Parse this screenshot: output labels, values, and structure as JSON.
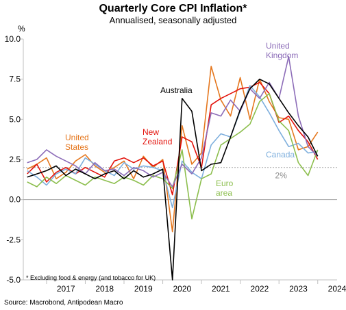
{
  "chart_data": {
    "type": "line",
    "title": "Quarterly Core CPI Inflation*",
    "subtitle": "Annualised, seasonally adjusted",
    "ylabel": "%",
    "ylim": [
      -5.0,
      10.0
    ],
    "yticks": [
      -5.0,
      -2.5,
      0.0,
      2.5,
      5.0,
      7.5,
      10.0
    ],
    "ytick_labels": [
      "-5.0",
      "-2.5",
      "0.0",
      "2.5",
      "5.0",
      "7.5",
      "10.0"
    ],
    "xlim": [
      2016.4,
      2024.5
    ],
    "xtick_labels": [
      "2017",
      "2018",
      "2019",
      "2020",
      "2021",
      "2022",
      "2023",
      "2024"
    ],
    "reference_line": {
      "value": 2.0,
      "label": "2%"
    },
    "grid": false,
    "footnote": "* Excluding food & energy (and tobacco for UK)",
    "source": "Source: Macrobond, Antipodean Macro",
    "series": [
      {
        "name": "Australia",
        "color": "#000000",
        "x": [
          2016.5,
          2016.75,
          2017.0,
          2017.25,
          2017.5,
          2017.75,
          2018.0,
          2018.25,
          2018.5,
          2018.75,
          2019.0,
          2019.25,
          2019.5,
          2019.75,
          2020.0,
          2020.25,
          2020.5,
          2020.75,
          2021.0,
          2021.25,
          2021.5,
          2021.75,
          2022.0,
          2022.25,
          2022.5,
          2022.75,
          2023.0,
          2023.25,
          2023.5,
          2023.75,
          2024.0
        ],
        "y": [
          1.4,
          1.6,
          1.8,
          2.1,
          1.5,
          1.9,
          1.6,
          1.3,
          1.6,
          1.8,
          1.3,
          1.8,
          1.4,
          1.6,
          1.9,
          -5.0,
          6.3,
          5.5,
          1.8,
          2.2,
          2.3,
          3.9,
          5.6,
          6.9,
          7.5,
          7.2,
          6.3,
          5.4,
          4.6,
          3.9,
          2.7
        ]
      },
      {
        "name": "United\nStates",
        "color": "#e5771e",
        "x": [
          2016.5,
          2016.75,
          2017.0,
          2017.25,
          2017.5,
          2017.75,
          2018.0,
          2018.25,
          2018.5,
          2018.75,
          2019.0,
          2019.25,
          2019.5,
          2019.75,
          2020.0,
          2020.25,
          2020.5,
          2020.75,
          2021.0,
          2021.25,
          2021.5,
          2021.75,
          2022.0,
          2022.25,
          2022.5,
          2022.75,
          2023.0,
          2023.25,
          2023.5,
          2023.75,
          2024.0
        ],
        "y": [
          1.9,
          2.2,
          2.6,
          1.3,
          1.7,
          2.4,
          2.8,
          2.1,
          1.7,
          2.0,
          2.4,
          1.3,
          2.7,
          2.0,
          2.5,
          -2.0,
          4.6,
          2.2,
          2.9,
          8.3,
          6.2,
          5.2,
          7.6,
          5.0,
          7.5,
          6.1,
          5.1,
          5.0,
          3.1,
          3.3,
          4.2
        ]
      },
      {
        "name": "New\nZealand",
        "color": "#e3120b",
        "x": [
          2016.5,
          2016.75,
          2017.0,
          2017.25,
          2017.5,
          2017.75,
          2018.0,
          2018.25,
          2018.5,
          2018.75,
          2019.0,
          2019.25,
          2019.5,
          2019.75,
          2020.0,
          2020.25,
          2020.5,
          2020.75,
          2021.0,
          2021.25,
          2021.5,
          2021.75,
          2022.0,
          2022.25,
          2022.5,
          2022.75,
          2023.0,
          2023.25,
          2023.5,
          2023.75,
          2024.0
        ],
        "y": [
          1.6,
          2.2,
          1.1,
          1.7,
          2.0,
          1.6,
          2.0,
          1.7,
          1.4,
          2.4,
          2.6,
          2.3,
          2.6,
          2.1,
          2.4,
          0.3,
          3.9,
          3.6,
          2.0,
          5.9,
          6.3,
          6.6,
          6.9,
          7.0,
          7.3,
          6.6,
          4.8,
          5.2,
          4.3,
          3.6,
          2.5
        ]
      },
      {
        "name": "Canada",
        "color": "#7eafdd",
        "x": [
          2016.5,
          2016.75,
          2017.0,
          2017.25,
          2017.5,
          2017.75,
          2018.0,
          2018.25,
          2018.5,
          2018.75,
          2019.0,
          2019.25,
          2019.5,
          2019.75,
          2020.0,
          2020.25,
          2020.5,
          2020.75,
          2021.0,
          2021.25,
          2021.5,
          2021.75,
          2022.0,
          2022.25,
          2022.5,
          2022.75,
          2023.0,
          2023.25,
          2023.5,
          2023.75,
          2024.0
        ],
        "y": [
          1.8,
          1.4,
          0.9,
          1.6,
          1.9,
          1.6,
          2.6,
          2.2,
          1.8,
          1.5,
          2.3,
          1.9,
          2.1,
          2.0,
          1.8,
          -0.5,
          2.4,
          1.7,
          1.3,
          3.4,
          4.1,
          3.9,
          5.5,
          7.1,
          6.4,
          5.4,
          4.3,
          3.3,
          3.5,
          2.9,
          3.0
        ]
      },
      {
        "name": "Euro\narea",
        "color": "#8cbe4d",
        "x": [
          2016.5,
          2016.75,
          2017.0,
          2017.25,
          2017.5,
          2017.75,
          2018.0,
          2018.25,
          2018.5,
          2018.75,
          2019.0,
          2019.25,
          2019.5,
          2019.75,
          2020.0,
          2020.25,
          2020.5,
          2020.75,
          2021.0,
          2021.25,
          2021.5,
          2021.75,
          2022.0,
          2022.25,
          2022.5,
          2022.75,
          2023.0,
          2023.25,
          2023.5,
          2023.75,
          2024.0
        ],
        "y": [
          1.1,
          0.8,
          1.4,
          1.0,
          1.5,
          1.2,
          0.9,
          1.4,
          1.2,
          1.0,
          1.4,
          1.2,
          0.9,
          1.5,
          1.3,
          0.7,
          3.1,
          -1.2,
          1.3,
          1.6,
          3.4,
          3.8,
          4.2,
          4.7,
          6.1,
          6.6,
          4.9,
          4.3,
          2.3,
          1.5,
          3.1
        ]
      },
      {
        "name": "United\nKingdom",
        "color": "#8c6cb8",
        "x": [
          2016.5,
          2016.75,
          2017.0,
          2017.25,
          2017.5,
          2017.75,
          2018.0,
          2018.25,
          2018.5,
          2018.75,
          2019.0,
          2019.25,
          2019.5,
          2019.75,
          2020.0,
          2020.25,
          2020.5,
          2020.75,
          2021.0,
          2021.25,
          2021.5,
          2021.75,
          2022.0,
          2022.25,
          2022.5,
          2022.75,
          2023.0,
          2023.25,
          2023.5,
          2023.75,
          2024.0
        ],
        "y": [
          2.3,
          2.5,
          3.1,
          2.7,
          2.4,
          2.1,
          1.6,
          2.3,
          1.8,
          1.9,
          1.5,
          2.0,
          1.8,
          1.4,
          1.7,
          0.8,
          2.2,
          1.6,
          2.6,
          5.4,
          5.2,
          6.2,
          5.5,
          6.9,
          6.3,
          7.3,
          6.3,
          8.9,
          5.2,
          3.3,
          2.7
        ]
      }
    ],
    "annotations": [
      {
        "text": "Australia",
        "series": "Australia"
      },
      {
        "text": "United\nStates",
        "series": "United\nStates"
      },
      {
        "text": "New\nZealand",
        "series": "New\nZealand"
      },
      {
        "text": "Canada",
        "series": "Canada"
      },
      {
        "text": "Euro\narea",
        "series": "Euro\narea"
      },
      {
        "text": "United\nKingdom",
        "series": "United\nKingdom"
      }
    ]
  }
}
